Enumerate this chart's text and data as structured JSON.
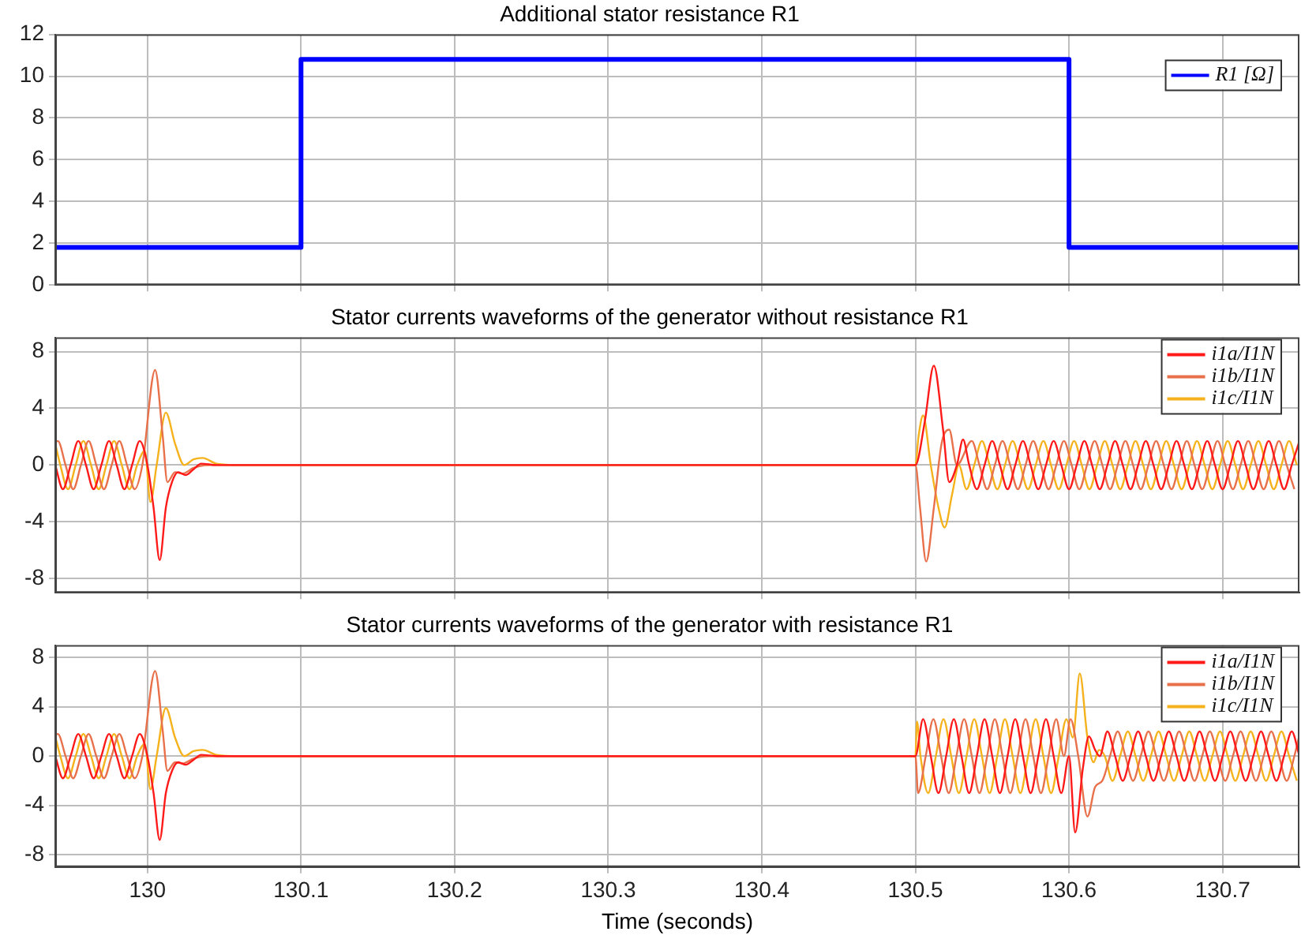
{
  "chart_data": [
    {
      "type": "step",
      "title": "Additional stator resistance R1",
      "xlim": [
        129.94,
        130.75
      ],
      "xticks": [
        130,
        130.1,
        130.2,
        130.3,
        130.4,
        130.5,
        130.6,
        130.7
      ],
      "ylim": [
        0,
        12
      ],
      "yticks": [
        0,
        2,
        4,
        6,
        8,
        10,
        12
      ],
      "grid": true,
      "tick_labels": "y",
      "legend": "top right",
      "marker": "none",
      "series": [
        {
          "name": "R1 [Ω]",
          "color": "#0000ff",
          "x": [
            129.94,
            130.1,
            130.6,
            130.75
          ],
          "values": [
            1.8,
            10.8,
            1.8,
            1.8
          ]
        }
      ]
    },
    {
      "type": "line",
      "title": "Stator currents waveforms of the generator without resistance R1",
      "xlim": [
        129.94,
        130.75
      ],
      "xticks": [
        130,
        130.1,
        130.2,
        130.3,
        130.4,
        130.5,
        130.6,
        130.7
      ],
      "ylim": [
        -9,
        9
      ],
      "yticks": [
        -8,
        -4,
        0,
        4,
        8
      ],
      "grid": true,
      "tick_labels": "y",
      "legend": "top right",
      "marker": "none",
      "series": [
        {
          "name": "i1a/I1N",
          "color": "#ff1a1a",
          "x": [
            129.94,
            129.945,
            129.95,
            129.955,
            129.96,
            129.965,
            129.97,
            129.975,
            129.98,
            129.985,
            129.99,
            129.995,
            130.0,
            130.004,
            130.008,
            130.012,
            130.016,
            130.02,
            130.025,
            130.03,
            130.035,
            130.045,
            130.06,
            130.5,
            130.506,
            130.512,
            130.518,
            130.522,
            130.527,
            130.531,
            130.535,
            130.54,
            130.545,
            130.55,
            130.555,
            130.56,
            130.565,
            130.57,
            130.575,
            130.58,
            130.585,
            130.59,
            130.595,
            130.6,
            130.605,
            130.61,
            130.615,
            130.62,
            130.625,
            130.63,
            130.635,
            130.64,
            130.645,
            130.65,
            130.655,
            130.66,
            130.665,
            130.67,
            130.675,
            130.68,
            130.685,
            130.69,
            130.695,
            130.7,
            130.705,
            130.71,
            130.715,
            130.72,
            130.725,
            130.73,
            130.735,
            130.74,
            130.745,
            130.75
          ],
          "values": [
            0,
            -1.7,
            0,
            1.7,
            0,
            -1.7,
            0,
            1.7,
            0,
            -1.7,
            0,
            1.7,
            0,
            -3,
            -6.7,
            -3,
            -1.2,
            -0.5,
            -0.7,
            -0.3,
            0.1,
            0,
            0,
            0,
            3,
            7,
            2.5,
            -1.2,
            0,
            1.8,
            0,
            -1.7,
            0,
            1.7,
            0,
            -1.7,
            0,
            1.7,
            0,
            -1.7,
            0,
            1.7,
            0,
            -1.7,
            0,
            1.7,
            0,
            -1.7,
            0,
            1.7,
            0,
            -1.7,
            0,
            1.7,
            0,
            -1.7,
            0,
            1.7,
            0,
            -1.7,
            0,
            1.7,
            0,
            -1.7,
            0,
            1.7,
            0,
            -1.7,
            0,
            1.7,
            0,
            -1.7,
            0,
            1.7
          ]
        },
        {
          "name": "i1b/I1N",
          "color": "#e8704a",
          "x": [
            129.94,
            129.9417,
            129.9467,
            129.9517,
            129.9567,
            129.9617,
            129.9667,
            129.9717,
            129.9767,
            129.9817,
            129.9867,
            129.9917,
            129.9967,
            130.005,
            130.01,
            130.013,
            130.018,
            130.023,
            130.03,
            130.04,
            130.06,
            130.5,
            130.503,
            130.507,
            130.512,
            130.517,
            130.522,
            130.527,
            130.5367,
            130.5417,
            130.5467,
            130.5517,
            130.5567,
            130.5617,
            130.5667,
            130.5717,
            130.5767,
            130.5817,
            130.5867,
            130.5917,
            130.5967,
            130.6017,
            130.6067,
            130.6117,
            130.6167,
            130.6217,
            130.6267,
            130.6317,
            130.6367,
            130.6417,
            130.6467,
            130.6517,
            130.6567,
            130.6617,
            130.6667,
            130.6717,
            130.6767,
            130.6817,
            130.6867,
            130.6917,
            130.6967,
            130.7017,
            130.7067,
            130.7117,
            130.7167,
            130.7217,
            130.7267,
            130.7317,
            130.7367,
            130.7417,
            130.7467
          ],
          "values": [
            1.6,
            1.7,
            0,
            -1.7,
            0,
            1.7,
            0,
            -1.7,
            0,
            1.7,
            0,
            -1.7,
            0,
            6.7,
            2,
            -1.2,
            -0.5,
            -0.6,
            -0.2,
            0,
            0,
            0,
            -3,
            -6.8,
            -3,
            1.5,
            2.5,
            0,
            1.7,
            0,
            -1.7,
            0,
            1.7,
            0,
            -1.7,
            0,
            1.7,
            0,
            -1.7,
            0,
            1.7,
            0,
            -1.7,
            0,
            1.7,
            0,
            -1.7,
            0,
            1.7,
            0,
            -1.7,
            0,
            1.7,
            0,
            -1.7,
            0,
            1.7,
            0,
            -1.7,
            0,
            1.7,
            0,
            -1.7,
            0,
            1.7,
            0,
            -1.7,
            0,
            1.7,
            0,
            -1.7
          ]
        },
        {
          "name": "i1c/I1N",
          "color": "#f5b21c",
          "x": [
            129.94,
            129.9433,
            129.9483,
            129.9533,
            129.9583,
            129.9633,
            129.9683,
            129.9733,
            129.9783,
            129.9833,
            129.9883,
            129.9933,
            129.9983,
            130.002,
            130.006,
            130.012,
            130.018,
            130.024,
            130.03,
            130.036,
            130.045,
            130.06,
            130.5,
            130.502,
            130.505,
            130.51,
            130.515,
            130.519,
            130.524,
            130.5283,
            130.5333,
            130.5383,
            130.5433,
            130.5483,
            130.5533,
            130.5583,
            130.5633,
            130.5683,
            130.5733,
            130.5783,
            130.5833,
            130.5883,
            130.5933,
            130.5983,
            130.6033,
            130.6083,
            130.6133,
            130.6183,
            130.6233,
            130.6283,
            130.6333,
            130.6383,
            130.6433,
            130.6483,
            130.6533,
            130.6583,
            130.6633,
            130.6683,
            130.6733,
            130.6783,
            130.6833,
            130.6883,
            130.6933,
            130.6983,
            130.7033,
            130.7083,
            130.7133,
            130.7183,
            130.7233,
            130.7283,
            130.7333,
            130.7383,
            130.7433,
            130.7483
          ],
          "values": [
            1.5,
            0,
            -1.7,
            0,
            1.7,
            0,
            -1.7,
            0,
            1.7,
            0,
            -1.7,
            0,
            1,
            -2.6,
            0,
            3.7,
            1.5,
            0,
            0.4,
            0.5,
            0.1,
            0,
            0,
            2,
            3.5,
            0,
            -3,
            -4.4,
            -2,
            0,
            -1.7,
            0,
            1.7,
            0,
            -1.7,
            0,
            1.7,
            0,
            -1.7,
            0,
            1.7,
            0,
            -1.7,
            0,
            1.7,
            0,
            -1.7,
            0,
            1.7,
            0,
            -1.7,
            0,
            1.7,
            0,
            -1.7,
            0,
            1.7,
            0,
            -1.7,
            0,
            1.7,
            0,
            -1.7,
            0,
            1.7,
            0,
            -1.7,
            0,
            1.7,
            0,
            -1.7,
            0,
            1.7,
            0
          ]
        }
      ]
    },
    {
      "type": "line",
      "title": "Stator currents waveforms of the generator with resistance R1",
      "xlabel": "Time (seconds)",
      "xlim": [
        129.94,
        130.75
      ],
      "xticks": [
        130,
        130.1,
        130.2,
        130.3,
        130.4,
        130.5,
        130.6,
        130.7
      ],
      "ylim": [
        -9,
        9
      ],
      "yticks": [
        -8,
        -4,
        0,
        4,
        8
      ],
      "grid": true,
      "legend": "top right",
      "marker": "none",
      "series": [
        {
          "name": "i1a/I1N",
          "color": "#ff1a1a",
          "x": [
            129.94,
            129.945,
            129.95,
            129.955,
            129.96,
            129.965,
            129.97,
            129.975,
            129.98,
            129.985,
            129.99,
            129.995,
            130.0,
            130.004,
            130.008,
            130.012,
            130.016,
            130.02,
            130.025,
            130.03,
            130.035,
            130.045,
            130.06,
            130.5,
            130.505,
            130.51,
            130.515,
            130.52,
            130.525,
            130.53,
            130.535,
            130.54,
            130.545,
            130.55,
            130.555,
            130.56,
            130.565,
            130.57,
            130.575,
            130.58,
            130.585,
            130.59,
            130.595,
            130.6,
            130.604,
            130.609,
            130.613,
            130.617,
            130.62,
            130.625,
            130.63,
            130.635,
            130.64,
            130.645,
            130.65,
            130.655,
            130.66,
            130.665,
            130.67,
            130.675,
            130.68,
            130.685,
            130.69,
            130.695,
            130.7,
            130.705,
            130.71,
            130.715,
            130.72,
            130.725,
            130.73,
            130.735,
            130.74,
            130.745,
            130.75
          ],
          "values": [
            0,
            -1.8,
            0,
            1.8,
            0,
            -1.8,
            0,
            1.8,
            0,
            -1.8,
            0,
            1.8,
            0,
            -3,
            -6.8,
            -3,
            -1.2,
            -0.5,
            -0.7,
            -0.3,
            0.1,
            0,
            0,
            0,
            3,
            0,
            -3,
            0,
            3,
            0,
            -3,
            0,
            3,
            0,
            -3,
            0,
            3,
            0,
            -3,
            0,
            3,
            0,
            -3,
            0,
            -6.2,
            -1,
            1.6,
            0.5,
            0,
            2,
            0,
            -2,
            0,
            2,
            0,
            -2,
            0,
            2,
            0,
            -2,
            0,
            2,
            0,
            -2,
            0,
            2,
            0,
            -2,
            0,
            2,
            0,
            -2,
            0,
            2,
            0
          ]
        },
        {
          "name": "i1b/I1N",
          "color": "#e8704a",
          "x": [
            129.94,
            129.9417,
            129.9467,
            129.9517,
            129.9567,
            129.9617,
            129.9667,
            129.9717,
            129.9767,
            129.9817,
            129.9867,
            129.9917,
            129.9967,
            130.005,
            130.01,
            130.013,
            130.018,
            130.023,
            130.03,
            130.04,
            130.06,
            130.5,
            130.5017,
            130.5067,
            130.5117,
            130.5167,
            130.5217,
            130.5267,
            130.5317,
            130.5367,
            130.5417,
            130.5467,
            130.5517,
            130.5567,
            130.5617,
            130.5667,
            130.5717,
            130.5767,
            130.5817,
            130.5867,
            130.5917,
            130.5967,
            130.601,
            130.606,
            130.612,
            130.617,
            130.6217,
            130.6267,
            130.6317,
            130.6367,
            130.6417,
            130.6467,
            130.6517,
            130.6567,
            130.6617,
            130.6667,
            130.6717,
            130.6767,
            130.6817,
            130.6867,
            130.6917,
            130.6967,
            130.7017,
            130.7067,
            130.7117,
            130.7167,
            130.7217,
            130.7267,
            130.7317,
            130.7367,
            130.7417,
            130.7467,
            130.75
          ],
          "values": [
            1.7,
            1.8,
            0,
            -1.8,
            0,
            1.8,
            0,
            -1.8,
            0,
            1.8,
            0,
            -1.8,
            0,
            6.9,
            2,
            -1.2,
            -0.5,
            -0.6,
            -0.2,
            0,
            0,
            0,
            -3,
            0,
            3,
            0,
            -3,
            0,
            3,
            0,
            -3,
            0,
            3,
            0,
            -3,
            0,
            3,
            0,
            -3,
            0,
            3,
            0,
            3,
            0,
            -4.9,
            -2.5,
            -2,
            0,
            2,
            0,
            -2,
            0,
            2,
            0,
            -2,
            0,
            2,
            0,
            -2,
            0,
            2,
            0,
            -2,
            0,
            2,
            0,
            -2,
            0,
            2,
            0,
            -2,
            0,
            1.7
          ]
        },
        {
          "name": "i1c/I1N",
          "color": "#f5b21c",
          "x": [
            129.94,
            129.9433,
            129.9483,
            129.9533,
            129.9583,
            129.9633,
            129.9683,
            129.9733,
            129.9783,
            129.9833,
            129.9883,
            129.9933,
            129.9983,
            130.002,
            130.006,
            130.012,
            130.018,
            130.024,
            130.03,
            130.036,
            130.045,
            130.06,
            130.5,
            130.501,
            130.5033,
            130.5083,
            130.5133,
            130.5183,
            130.5233,
            130.5283,
            130.5333,
            130.5383,
            130.5433,
            130.5483,
            130.5533,
            130.5583,
            130.5633,
            130.5683,
            130.5733,
            130.5783,
            130.5833,
            130.5883,
            130.5933,
            130.5983,
            130.6025,
            130.607,
            130.612,
            130.616,
            130.6195,
            130.6233,
            130.6283,
            130.6333,
            130.6383,
            130.6433,
            130.6483,
            130.6533,
            130.6583,
            130.6633,
            130.6683,
            130.6733,
            130.6783,
            130.6833,
            130.6883,
            130.6933,
            130.6983,
            130.7033,
            130.7083,
            130.7133,
            130.7183,
            130.7233,
            130.7283,
            130.7333,
            130.7383,
            130.7433,
            130.7483
          ],
          "values": [
            1.6,
            0,
            -1.8,
            0,
            1.8,
            0,
            -1.8,
            0,
            1.8,
            0,
            -1.8,
            0,
            1,
            -2.7,
            0,
            3.9,
            1.5,
            0,
            0.4,
            0.5,
            0.1,
            0,
            0,
            2.8,
            0,
            -3,
            0,
            3,
            0,
            -3,
            0,
            3,
            0,
            -3,
            0,
            3,
            0,
            -3,
            0,
            3,
            0,
            -3,
            0,
            3,
            1.5,
            6.7,
            1.5,
            -0.5,
            0.5,
            0,
            -2,
            0,
            2,
            0,
            -2,
            0,
            2,
            0,
            -2,
            0,
            2,
            0,
            -2,
            0,
            2,
            0,
            -2,
            0,
            2,
            0,
            -2,
            0,
            2,
            0,
            -2
          ]
        }
      ]
    }
  ]
}
